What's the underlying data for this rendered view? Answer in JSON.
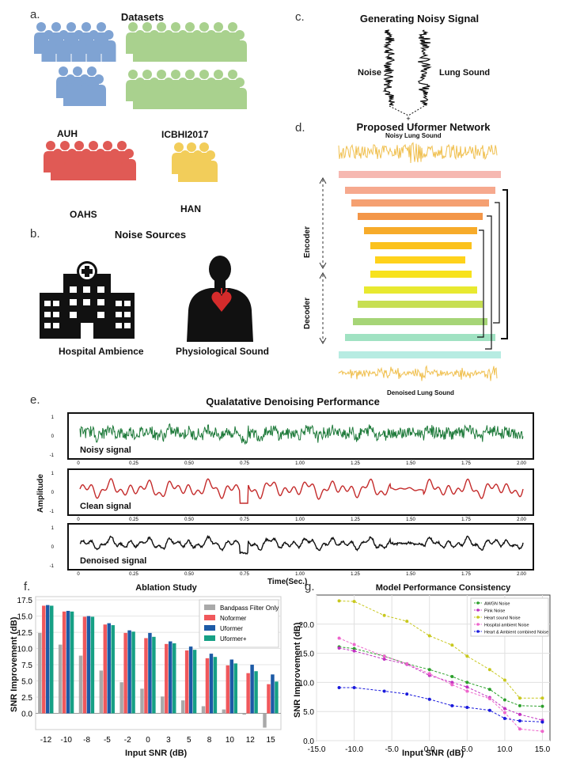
{
  "panel_a": {
    "tag": "a.",
    "title": "Datasets",
    "groups": [
      {
        "name": "AUH",
        "color": "#7fa3d3"
      },
      {
        "name": "ICBHI2017",
        "color": "#a9d18e"
      },
      {
        "name": "OAHS",
        "color": "#e05a55"
      },
      {
        "name": "HAN",
        "color": "#f2cd5a"
      }
    ]
  },
  "panel_b": {
    "tag": "b.",
    "title": "Noise Sources",
    "items": [
      "Hospital Ambience",
      "Physiological Sound"
    ]
  },
  "panel_c": {
    "tag": "c.",
    "title": "Generating Noisy Signal",
    "noise_label": "Noise",
    "lung_label": "Lung Sound",
    "combine_symbol": "+"
  },
  "panel_d": {
    "tag": "d.",
    "title": "Proposed Uformer Network",
    "input_label": "Noisy Lung Sound",
    "encoder_label": "Encoder",
    "decoder_label": "Decoder",
    "output_label": "Denoised Lung Sound",
    "layer_colors": [
      "#f6b8b1",
      "#f6a98e",
      "#f5a071",
      "#f39648",
      "#f7ab2a",
      "#fbc21c",
      "#ffd21b",
      "#f7e21c",
      "#e8e930",
      "#c7df52",
      "#a6d577",
      "#8fd39b",
      "#a0e2c2",
      "#b7ece2"
    ]
  },
  "panel_e": {
    "tag": "e.",
    "title": "Qualatative Denoising Performance",
    "ylabel": "Amplitude",
    "xlabel": "Time(Sec.)",
    "x_ticks": [
      "0",
      "0.25",
      "0.50",
      "0.75",
      "1.00",
      "1.25",
      "1.50",
      "1.75",
      "2.00"
    ],
    "y_ticks": [
      "1",
      "0",
      "-1"
    ],
    "signals": [
      {
        "name": "Noisy signal",
        "color": "#1e7a3a"
      },
      {
        "name": "Clean signal",
        "color": "#c42b2b"
      },
      {
        "name": "Denoised signal",
        "color": "#111111"
      }
    ]
  },
  "chart_data": [
    {
      "type": "bar",
      "tag": "f.",
      "title": "Ablation Study",
      "xlabel": "Input SNR (dB)",
      "ylabel": "SNR Improvement (dB)",
      "categories": [
        "-12",
        "-10",
        "-8",
        "-5",
        "-2",
        "0",
        "3",
        "5",
        "8",
        "10",
        "12",
        "15"
      ],
      "ylim": [
        -2.5,
        18
      ],
      "y_ticks": [
        "0.0",
        "2.5",
        "5.0",
        "7.5",
        "10.0",
        "12.5",
        "15.0",
        "17.5"
      ],
      "series": [
        {
          "name": "Bandpass Filter Only",
          "color": "#a9a9a9",
          "values": [
            12.4,
            10.6,
            8.9,
            6.6,
            4.8,
            3.8,
            2.6,
            2.0,
            1.1,
            0.6,
            -0.2,
            -2.2
          ]
        },
        {
          "name": "Noformer",
          "color": "#f0585c",
          "values": [
            16.6,
            15.7,
            14.9,
            13.7,
            12.4,
            11.6,
            10.7,
            9.7,
            8.5,
            7.4,
            6.2,
            4.5
          ]
        },
        {
          "name": "Uformer",
          "color": "#1c5aa6",
          "values": [
            16.7,
            15.8,
            15.0,
            13.9,
            12.8,
            12.4,
            11.1,
            10.3,
            9.2,
            8.3,
            7.5,
            6.0
          ]
        },
        {
          "name": "Uformer+",
          "color": "#16a085",
          "values": [
            16.6,
            15.7,
            14.9,
            13.6,
            12.6,
            11.8,
            10.8,
            9.8,
            8.7,
            7.7,
            6.5,
            4.9
          ]
        }
      ]
    },
    {
      "type": "line",
      "tag": "g.",
      "title": "Model Performance Consistency",
      "xlabel": "Input SNR (dB)",
      "ylabel": "SNR Improvement (dB)",
      "x": [
        -12,
        -10,
        -6,
        -3,
        0,
        3,
        5,
        8,
        10,
        12,
        15
      ],
      "xlim": [
        -15,
        16
      ],
      "ylim": [
        0,
        25
      ],
      "x_ticks": [
        "-15.0",
        "-10.0",
        "-5.0",
        "0.0",
        "5.0",
        "10.0",
        "15.0"
      ],
      "y_ticks": [
        "0.0",
        "5.0",
        "10.0",
        "15.0",
        "20.0"
      ],
      "series": [
        {
          "name": "AWGN Noise",
          "color": "#2ca02c",
          "values": [
            16.1,
            15.8,
            14.5,
            13.2,
            12.2,
            11.0,
            10.0,
            8.8,
            7.0,
            6.0,
            5.9
          ]
        },
        {
          "name": "Pink Noise",
          "color": "#c030c0",
          "values": [
            15.9,
            15.4,
            14.0,
            13.1,
            11.2,
            10.0,
            9.2,
            7.4,
            5.5,
            4.5,
            3.5
          ]
        },
        {
          "name": "Heart sound Noise",
          "color": "#c8c81e",
          "values": [
            24.0,
            23.9,
            21.5,
            20.5,
            18.0,
            16.4,
            14.5,
            12.2,
            10.4,
            7.3,
            7.3
          ]
        },
        {
          "name": "Hospital ambient Noise",
          "color": "#ee66cc",
          "values": [
            17.6,
            16.5,
            14.5,
            13.2,
            11.5,
            9.6,
            8.5,
            7.2,
            4.8,
            2.0,
            1.6
          ]
        },
        {
          "name": "Heart & Ambient combined Noise",
          "color": "#1a1adc",
          "values": [
            9.1,
            9.1,
            8.5,
            8.0,
            7.1,
            6.0,
            5.7,
            5.2,
            3.8,
            3.4,
            3.2
          ]
        }
      ]
    }
  ]
}
